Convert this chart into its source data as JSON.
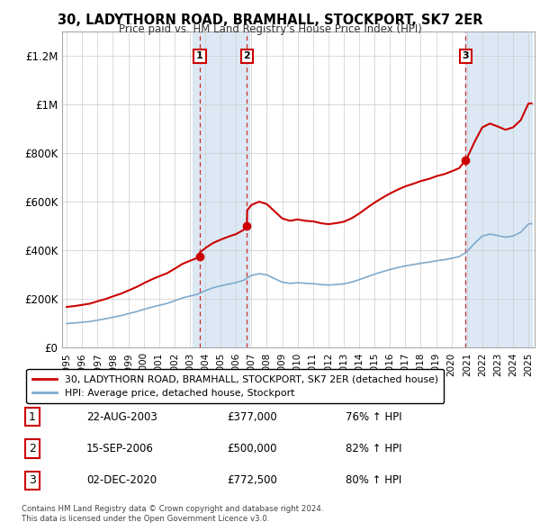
{
  "title": "30, LADYTHORN ROAD, BRAMHALL, STOCKPORT, SK7 2ER",
  "subtitle": "Price paid vs. HM Land Registry's House Price Index (HPI)",
  "sale_labels": [
    "1",
    "2",
    "3"
  ],
  "sale_years_f": [
    2003.64,
    2006.71,
    2020.92
  ],
  "sale_prices": [
    377000,
    500000,
    772500
  ],
  "legend_property": "30, LADYTHORN ROAD, BRAMHALL, STOCKPORT, SK7 2ER (detached house)",
  "legend_hpi": "HPI: Average price, detached house, Stockport",
  "footer1": "Contains HM Land Registry data © Crown copyright and database right 2024.",
  "footer2": "This data is licensed under the Open Government Licence v3.0.",
  "property_color": "#cc0000",
  "hpi_color": "#7faacc",
  "highlight_color": "#dce9f5",
  "ylim": [
    0,
    1300000
  ],
  "yticks": [
    0,
    200000,
    400000,
    600000,
    800000,
    1000000,
    1200000
  ],
  "ylabel_texts": [
    "£0",
    "£200K",
    "£400K",
    "£600K",
    "£800K",
    "£1M",
    "£1.2M"
  ],
  "xmin": 1994.7,
  "xmax": 2025.4,
  "table_rows": [
    [
      "1",
      "22-AUG-2003",
      "£377,000",
      "76% ↑ HPI"
    ],
    [
      "2",
      "15-SEP-2006",
      "£500,000",
      "82% ↑ HPI"
    ],
    [
      "3",
      "02-DEC-2020",
      "£772,500",
      "80% ↑ HPI"
    ]
  ]
}
